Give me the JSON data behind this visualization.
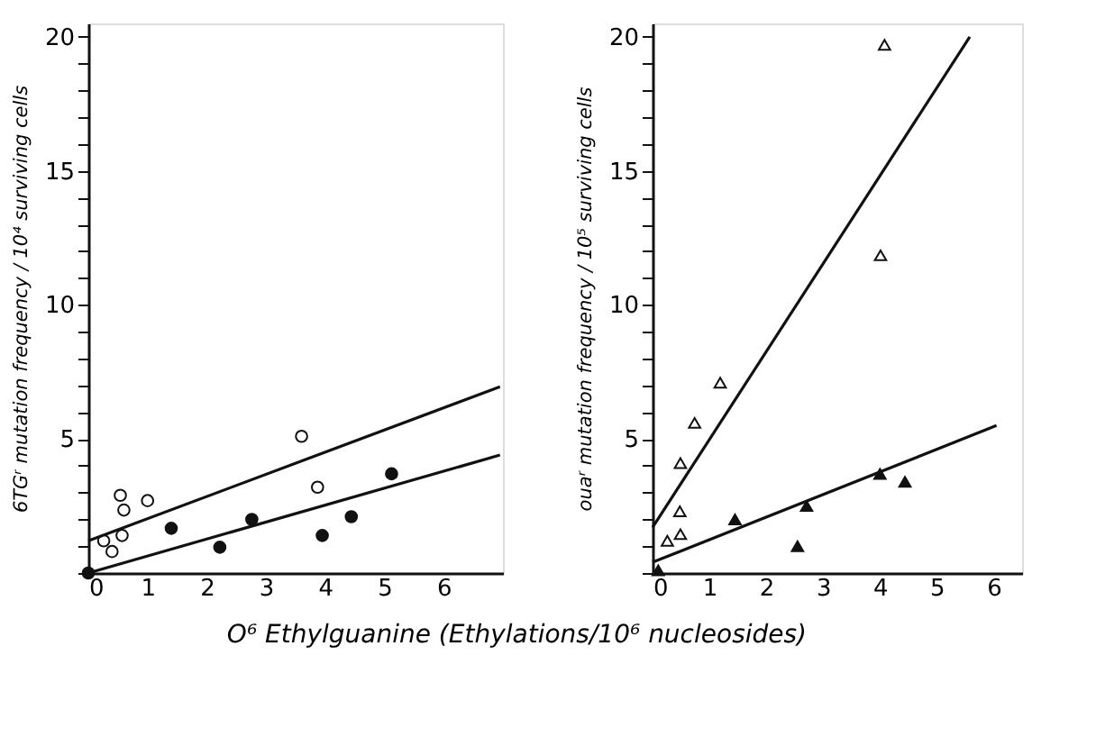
{
  "chart_data": [
    {
      "type": "scatter",
      "xlabel": "O⁶ Ethylguanine (Ethylations/10⁶ nucleosides)",
      "ylabel": "6TGʳ mutation frequency / 10⁴ surviving cells",
      "xlim": [
        0,
        7
      ],
      "ylim": [
        0,
        20.5
      ],
      "xticks": [
        0,
        1,
        2,
        3,
        4,
        5,
        6
      ],
      "yticks": [
        {
          "value": 0,
          "label": null
        },
        {
          "value": 1,
          "label": null
        },
        {
          "value": 2,
          "label": null
        },
        {
          "value": 3,
          "label": null
        },
        {
          "value": 4,
          "label": null
        },
        5,
        {
          "value": 6,
          "label": null
        },
        {
          "value": 7,
          "label": null
        },
        {
          "value": 8,
          "label": null
        },
        {
          "value": 9,
          "label": null
        },
        10,
        {
          "value": 11,
          "label": null
        },
        {
          "value": 12,
          "label": null
        },
        {
          "value": 13,
          "label": null
        },
        {
          "value": 14,
          "label": null
        },
        15,
        {
          "value": 16,
          "label": null
        },
        {
          "value": 17,
          "label": null
        },
        {
          "value": 18,
          "label": null
        },
        {
          "value": 19,
          "label": null
        },
        20
      ],
      "grid": false,
      "series": [
        {
          "type": "scatter",
          "marker": "circle",
          "color": "#ffffff",
          "x": [
            0.26,
            0.4,
            0.54,
            0.6,
            0.57,
            1.0,
            3.6,
            3.87
          ],
          "values": [
            1.2,
            0.8,
            2.9,
            2.35,
            1.4,
            2.7,
            5.1,
            3.2
          ]
        },
        {
          "type": "scatter",
          "marker": "circle",
          "color": "#111111",
          "x": [
            0,
            1.4,
            2.22,
            2.76,
            3.95,
            4.44,
            5.12
          ],
          "values": [
            0,
            1.67,
            0.96,
            2.0,
            1.4,
            2.1,
            3.7
          ]
        },
        {
          "type": "line",
          "color": "#111111",
          "x": [
            0,
            6.95
          ],
          "values": [
            1.2,
            6.95
          ]
        },
        {
          "type": "line",
          "color": "#111111",
          "x": [
            0,
            6.95
          ],
          "values": [
            0,
            4.4
          ]
        }
      ]
    },
    {
      "type": "scatter",
      "ylabel": "ouaʳ mutation frequency / 10⁵ surviving cells",
      "xlim": [
        0,
        6.5
      ],
      "ylim": [
        0,
        20.5
      ],
      "xticks": [
        0,
        1,
        2,
        3,
        4,
        5,
        6
      ],
      "yticks": [
        {
          "value": 0,
          "label": null
        },
        {
          "value": 1,
          "label": null
        },
        {
          "value": 2,
          "label": null
        },
        {
          "value": 3,
          "label": null
        },
        {
          "value": 4,
          "label": null
        },
        5,
        {
          "value": 6,
          "label": null
        },
        {
          "value": 7,
          "label": null
        },
        {
          "value": 8,
          "label": null
        },
        {
          "value": 9,
          "label": null
        },
        10,
        {
          "value": 11,
          "label": null
        },
        {
          "value": 12,
          "label": null
        },
        {
          "value": 13,
          "label": null
        },
        {
          "value": 14,
          "label": null
        },
        15,
        {
          "value": 16,
          "label": null
        },
        {
          "value": 17,
          "label": null
        },
        {
          "value": 18,
          "label": null
        },
        {
          "value": 19,
          "label": null
        },
        20
      ],
      "grid": false,
      "series": [
        {
          "type": "scatter",
          "marker": "triangle",
          "color": "#ffffff",
          "x": [
            0.26,
            0.49,
            0.48,
            0.49,
            0.74,
            1.19,
            4.08,
            4.01
          ],
          "values": [
            1.2,
            1.45,
            2.3,
            4.1,
            5.6,
            7.1,
            19.7,
            11.85
          ]
        },
        {
          "type": "scatter",
          "marker": "triangle",
          "color": "#111111",
          "x": [
            0.1,
            1.45,
            2.55,
            2.71,
            4.0,
            4.44
          ],
          "values": [
            0.1,
            2.0,
            1.0,
            2.5,
            3.7,
            3.4
          ]
        },
        {
          "type": "line",
          "color": "#111111",
          "x": [
            0,
            5.58
          ],
          "values": [
            1.7,
            20
          ]
        },
        {
          "type": "line",
          "color": "#111111",
          "x": [
            0,
            6.05
          ],
          "values": [
            0.4,
            5.5
          ]
        }
      ]
    }
  ]
}
